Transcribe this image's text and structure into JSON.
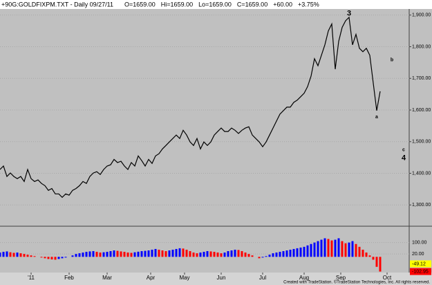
{
  "chart_data": {
    "type": "line",
    "title": "+90G:GOLDFIXPM.TXT - Daily  09/27/11",
    "header_fields": [
      {
        "text": "O=1659.00",
        "color": "#00b000"
      },
      {
        "text": "Hi=1659.00",
        "color": "#000000"
      },
      {
        "text": "Lo=1659.00",
        "color": "#000000"
      },
      {
        "text": "C=1659.00",
        "color": "#00b000"
      },
      {
        "text": "+60.00",
        "color": "#00b000"
      },
      {
        "text": "+3.75%",
        "color": "#00b000"
      }
    ],
    "color": "#000000",
    "values": [
      1412,
      1423,
      1390,
      1401,
      1390,
      1383,
      1390,
      1374,
      1412,
      1383,
      1374,
      1379,
      1368,
      1361,
      1346,
      1352,
      1335,
      1335,
      1324,
      1335,
      1331,
      1346,
      1352,
      1361,
      1374,
      1368,
      1390,
      1401,
      1405,
      1396,
      1412,
      1423,
      1427,
      1444,
      1434,
      1438,
      1423,
      1412,
      1434,
      1423,
      1455,
      1440,
      1423,
      1444,
      1431,
      1455,
      1462,
      1477,
      1488,
      1499,
      1510,
      1521,
      1510,
      1536,
      1521,
      1499,
      1488,
      1510,
      1477,
      1499,
      1488,
      1499,
      1521,
      1532,
      1543,
      1532,
      1532,
      1543,
      1536,
      1526,
      1536,
      1543,
      1547,
      1521,
      1510,
      1499,
      1484,
      1499,
      1521,
      1543,
      1565,
      1587,
      1598,
      1609,
      1609,
      1624,
      1631,
      1642,
      1653,
      1674,
      1707,
      1762,
      1740,
      1773,
      1806,
      1850,
      1872,
      1729,
      1817,
      1861,
      1882,
      1893,
      1806,
      1839,
      1795,
      1784,
      1795,
      1773,
      1685,
      1598,
      1659
    ],
    "xlim": [
      0,
      118.4
    ],
    "ylim": [
      1235,
      1917
    ],
    "yticks": [
      {
        "value": 1300,
        "label": "1,300.00"
      },
      {
        "value": 1400,
        "label": "1,400.00"
      },
      {
        "value": 1500,
        "label": "1,500.00"
      },
      {
        "value": 1600,
        "label": "1,600.00"
      },
      {
        "value": 1700,
        "label": "1,700.00"
      },
      {
        "value": 1800,
        "label": "1,800.00"
      },
      {
        "value": 1900,
        "label": "1,900.00"
      }
    ],
    "xticks": [
      {
        "value": 9,
        "label": "'11"
      },
      {
        "value": 20,
        "label": "Feb"
      },
      {
        "value": 31,
        "label": "Mar"
      },
      {
        "value": 43.6,
        "label": "Apr"
      },
      {
        "value": 53.4,
        "label": "May"
      },
      {
        "value": 64,
        "label": "Jun"
      },
      {
        "value": 76,
        "label": "Jul"
      },
      {
        "value": 88,
        "label": "Aug"
      },
      {
        "value": 98.6,
        "label": "Sep"
      },
      {
        "value": 112,
        "label": "Oct"
      }
    ],
    "grid": true,
    "annotations": [
      {
        "text": "3",
        "x": 101,
        "y": 1905
      },
      {
        "text": "b",
        "x": 113.4,
        "y": 1758
      },
      {
        "text": "a",
        "x": 109,
        "y": 1578
      },
      {
        "text": "c",
        "x": 116.8,
        "y": 1474
      },
      {
        "text": "4",
        "x": 116.8,
        "y": 1448
      }
    ],
    "indicator": {
      "type": "histogram",
      "up_color": "#0000ff",
      "down_color": "#ff0000",
      "values": [
        30,
        35,
        38,
        32,
        28,
        30,
        25,
        20,
        15,
        10,
        5,
        0,
        -5,
        -10,
        -15,
        -18,
        -20,
        -15,
        -10,
        -5,
        0,
        10,
        20,
        25,
        30,
        35,
        38,
        40,
        35,
        30,
        32,
        35,
        40,
        45,
        42,
        38,
        35,
        30,
        28,
        32,
        36,
        40,
        42,
        45,
        50,
        55,
        50,
        45,
        40,
        45,
        50,
        55,
        60,
        58,
        50,
        40,
        30,
        25,
        30,
        35,
        40,
        38,
        35,
        30,
        25,
        30,
        40,
        45,
        50,
        48,
        40,
        30,
        20,
        10,
        0,
        -10,
        -5,
        5,
        15,
        25,
        30,
        35,
        40,
        45,
        50,
        55,
        60,
        65,
        70,
        80,
        90,
        100,
        110,
        120,
        130,
        125,
        115,
        120,
        130,
        110,
        95,
        100,
        110,
        90,
        70,
        50,
        30,
        10,
        -20,
        -70,
        -102.95
      ],
      "ylim": [
        -110,
        200
      ],
      "yticks": [
        {
          "value": 20,
          "label": "20.00"
        },
        {
          "value": 100,
          "label": "100.00"
        }
      ],
      "markers": [
        {
          "value": -49.12,
          "color": "#ffff00"
        },
        {
          "value": -102.95,
          "color": "#ff0000"
        }
      ]
    },
    "footer": "Created with TradeStation. ©TradeStation Technologies, Inc. All rights reserved."
  }
}
